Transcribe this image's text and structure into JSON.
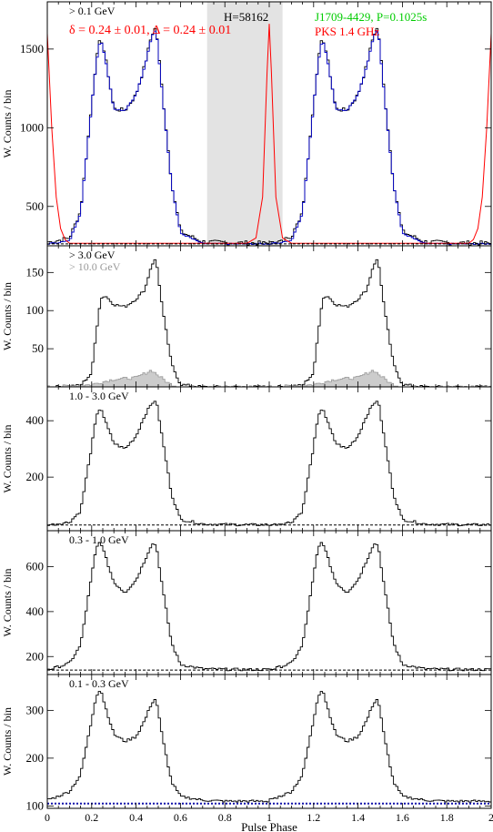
{
  "figure": {
    "x_label": "Pulse Phase",
    "x_range": [
      0,
      2
    ],
    "x_ticks": [
      "0",
      "0.2",
      "0.4",
      "0.6",
      "0.8",
      "1",
      "1.2",
      "1.4",
      "1.6",
      "1.8",
      "2"
    ],
    "y_label": "W. Counts / bin"
  },
  "chart_data": [
    {
      "type": "line",
      "energy_label": "> 0.1 GeV",
      "top_left_note": "δ = 0.24 ± 0.01, Δ = 0.24 ± 0.01",
      "top_center_note": "H=58162",
      "top_right_note": "J1709-4429, P=0.1025s",
      "radio_note": "PKS 1.4 GHz",
      "ylim": [
        250,
        1800
      ],
      "y_ticks": [
        500,
        1000,
        1500
      ],
      "background_level": 262,
      "off_pulse_region": [
        0.72,
        1.06
      ],
      "series": [
        {
          "color": "#000000",
          "x": [
            0.02,
            0.1,
            0.15,
            0.2,
            0.22,
            0.24,
            0.26,
            0.3,
            0.35,
            0.4,
            0.44,
            0.47,
            0.49,
            0.52,
            0.56,
            0.6,
            0.7,
            0.8,
            0.9,
            1.0
          ],
          "y": [
            275,
            300,
            470,
            1150,
            1420,
            1580,
            1460,
            1120,
            1110,
            1210,
            1400,
            1590,
            1640,
            1200,
            650,
            340,
            275,
            270,
            268,
            266
          ]
        },
        {
          "color": "#0000cc",
          "x": [
            0.0,
            0.1,
            0.15,
            0.2,
            0.22,
            0.24,
            0.26,
            0.3,
            0.35,
            0.4,
            0.44,
            0.47,
            0.49,
            0.52,
            0.56,
            0.6,
            0.7,
            0.8,
            0.9,
            1.0
          ],
          "y": [
            262,
            280,
            460,
            1140,
            1410,
            1570,
            1450,
            1120,
            1110,
            1210,
            1390,
            1580,
            1630,
            1190,
            640,
            330,
            264,
            262,
            262,
            262
          ]
        },
        {
          "color": "#ff0000",
          "x": [
            0.0,
            0.02,
            0.04,
            0.06,
            0.08,
            0.1,
            0.9,
            0.94,
            0.97,
            0.99,
            1.0,
            1.01,
            1.03,
            1.06,
            1.1,
            1.9,
            1.92,
            1.94,
            1.96,
            1.98,
            2.0
          ],
          "y": [
            1600,
            1000,
            560,
            360,
            290,
            266,
            266,
            300,
            560,
            1350,
            1660,
            1350,
            560,
            300,
            266,
            266,
            290,
            360,
            560,
            1000,
            1600
          ]
        }
      ]
    },
    {
      "type": "line",
      "energy_label": "> 3.0 GeV",
      "energy_label_2": "> 10.0 GeV",
      "ylim": [
        0,
        185
      ],
      "y_ticks": [
        50,
        100,
        150
      ],
      "background_level": 0,
      "series": [
        {
          "color": "#000000",
          "x": [
            0.02,
            0.15,
            0.2,
            0.22,
            0.24,
            0.26,
            0.3,
            0.35,
            0.4,
            0.44,
            0.47,
            0.49,
            0.52,
            0.56,
            0.6,
            0.7,
            0.8,
            0.9,
            1.0
          ],
          "y": [
            0,
            2,
            18,
            70,
            115,
            120,
            108,
            105,
            115,
            128,
            160,
            168,
            100,
            30,
            3,
            0,
            0,
            0,
            0
          ]
        },
        {
          "color": "#999999",
          "x": [
            0.02,
            0.2,
            0.3,
            0.4,
            0.47,
            0.5,
            0.55,
            0.6,
            1.0
          ],
          "y": [
            0,
            3,
            10,
            12,
            22,
            15,
            4,
            0,
            0
          ]
        }
      ]
    },
    {
      "type": "line",
      "energy_label": "1.0 - 3.0 GeV",
      "ylim": [
        10,
        520
      ],
      "y_ticks": [
        200,
        400
      ],
      "background_level": 30,
      "series": [
        {
          "color": "#000000",
          "x": [
            0.02,
            0.1,
            0.15,
            0.2,
            0.22,
            0.24,
            0.26,
            0.3,
            0.35,
            0.4,
            0.44,
            0.47,
            0.49,
            0.52,
            0.56,
            0.6,
            0.7,
            0.8,
            0.9,
            1.0
          ],
          "y": [
            32,
            40,
            80,
            310,
            410,
            450,
            400,
            320,
            300,
            345,
            420,
            460,
            475,
            330,
            140,
            50,
            34,
            32,
            31,
            31
          ]
        }
      ]
    },
    {
      "type": "line",
      "energy_label": "0.3 - 1.0 GeV",
      "ylim": [
        120,
        760
      ],
      "y_ticks": [
        200,
        400,
        600
      ],
      "background_level": 140,
      "series": [
        {
          "color": "#000000",
          "x": [
            0.02,
            0.1,
            0.15,
            0.2,
            0.22,
            0.24,
            0.26,
            0.3,
            0.35,
            0.4,
            0.44,
            0.47,
            0.49,
            0.52,
            0.56,
            0.6,
            0.7,
            0.8,
            0.9,
            1.0
          ],
          "y": [
            145,
            170,
            250,
            560,
            680,
            715,
            650,
            530,
            485,
            540,
            630,
            700,
            700,
            500,
            260,
            165,
            145,
            143,
            142,
            142
          ]
        }
      ]
    },
    {
      "type": "line",
      "energy_label": "0.1 - 0.3 GeV",
      "ylim": [
        95,
        375
      ],
      "y_ticks": [
        100,
        200,
        300
      ],
      "background_level": 105,
      "series": [
        {
          "color": "#000000",
          "x": [
            0.02,
            0.1,
            0.15,
            0.2,
            0.22,
            0.24,
            0.26,
            0.3,
            0.35,
            0.4,
            0.44,
            0.47,
            0.49,
            0.52,
            0.56,
            0.6,
            0.7,
            0.8,
            0.9,
            1.0
          ],
          "y": [
            115,
            130,
            165,
            280,
            330,
            345,
            310,
            250,
            235,
            245,
            280,
            315,
            325,
            240,
            150,
            120,
            112,
            110,
            110,
            110
          ]
        }
      ]
    }
  ]
}
